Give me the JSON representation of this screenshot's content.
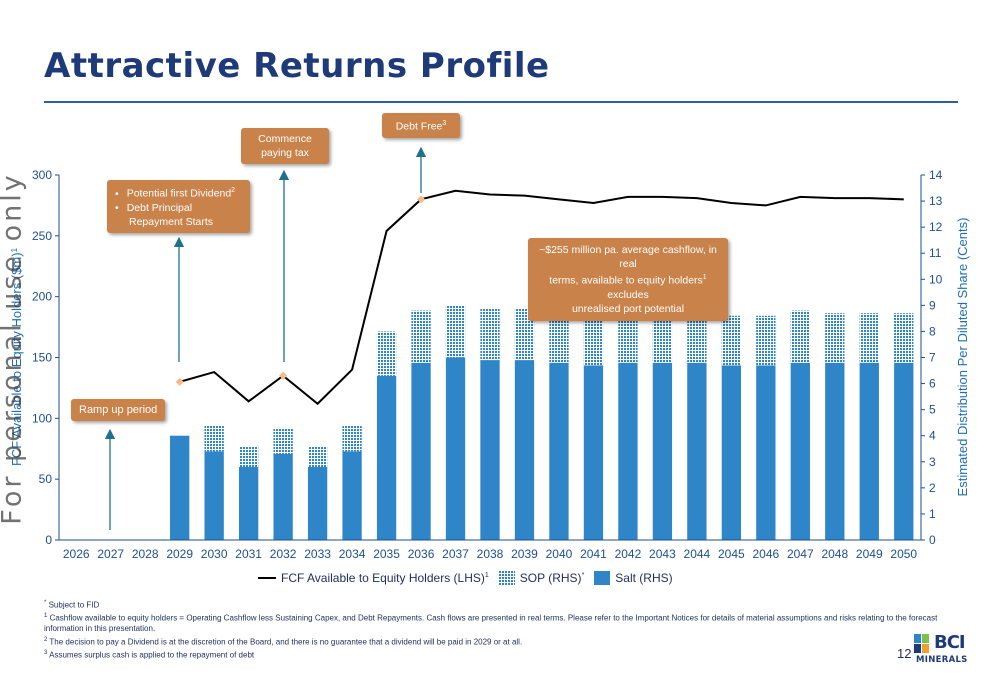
{
  "slide": {
    "title": "Attractive Returns Profile",
    "page_number": "12",
    "watermark": "For personal use only"
  },
  "colors": {
    "title": "#1e3a78",
    "salt": "#2e86c8",
    "sop": "#2e86c8",
    "line": "#000000",
    "marker": "#f5b98a",
    "callout": "#c8824a",
    "axis": "#1f4f8f"
  },
  "callouts": {
    "ramp_up": "Ramp up period",
    "dividend_items": [
      "Potential first Dividend",
      "Debt Principal Repayment Starts"
    ],
    "dividend_sup": "2",
    "tax_line1": "Commence",
    "tax_line2": "paying tax",
    "debt_free": "Debt Free",
    "debt_free_sup": "3",
    "cashflow_line1": "~$255 million pa. average cashflow, in real",
    "cashflow_line2a": "terms, available to equity holders",
    "cashflow_sup": "1",
    "cashflow_line2b": " excludes",
    "cashflow_line3": "unrealised port potential"
  },
  "legend": {
    "fcf": "FCF Available to Equity Holders (LHS)",
    "fcf_sup": "1",
    "sop": "SOP (RHS)",
    "sop_sup": "*",
    "salt": "Salt (RHS)"
  },
  "footnotes": {
    "star": "Subject to FID",
    "n1": "Cashflow available to equity holders = Operating Cashflow less Sustaining Capex, and Debt Repayments. Cash flows are presented in real terms. Please refer to the Important Notices for details of material assumptions and risks relating to the forecast information in this presentation.",
    "n2": "The decision to pay a Dividend is at the discretion of the Board, and there is no guarantee that a dividend will be paid in 2029 or at all.",
    "n3": "Assumes surplus cash is applied to the repayment of debt"
  },
  "logo": {
    "top": "BCI",
    "bottom": "MINERALS"
  },
  "chart_data": {
    "type": "bar+line",
    "categories": [
      "2026",
      "2027",
      "2028",
      "2029",
      "2030",
      "2031",
      "2032",
      "2033",
      "2034",
      "2035",
      "2036",
      "2037",
      "2038",
      "2039",
      "2040",
      "2041",
      "2042",
      "2043",
      "2044",
      "2045",
      "2046",
      "2047",
      "2048",
      "2049",
      "2050"
    ],
    "ylabel": "FCF Available to Equity Holders ($m)",
    "ylabel_sup": "1",
    "y2label": "Estimated Distribution Per Diluted Share (Cents)",
    "ylim": [
      0,
      300
    ],
    "yticks": [
      0,
      50,
      100,
      150,
      200,
      250,
      300
    ],
    "y2lim": [
      0,
      14
    ],
    "y2ticks": [
      0,
      1,
      2,
      3,
      4,
      5,
      6,
      7,
      8,
      9,
      10,
      11,
      12,
      13,
      14
    ],
    "bar_series": [
      {
        "name": "Salt (RHS)",
        "axis": "y2",
        "values": [
          0,
          0,
          0,
          4.0,
          3.4,
          2.8,
          3.3,
          2.8,
          3.4,
          6.3,
          6.8,
          7.0,
          6.9,
          6.9,
          6.8,
          6.7,
          6.8,
          6.8,
          6.8,
          6.7,
          6.7,
          6.8,
          6.8,
          6.8,
          6.8
        ]
      },
      {
        "name": "SOP (RHS)",
        "axis": "y2",
        "values": [
          0,
          0,
          0,
          0,
          1.0,
          0.8,
          1.0,
          0.8,
          1.0,
          1.7,
          2.0,
          2.0,
          2.0,
          2.0,
          2.0,
          1.9,
          2.0,
          2.0,
          2.0,
          1.9,
          1.9,
          2.0,
          1.9,
          1.9,
          1.9
        ]
      }
    ],
    "line_series": {
      "name": "FCF Available to Equity Holders (LHS)",
      "axis": "y",
      "start_index": 3,
      "values": [
        130,
        138,
        114,
        135,
        112,
        140,
        254,
        280,
        287,
        284,
        283,
        280,
        277,
        282,
        282,
        281,
        277,
        275,
        282,
        281,
        281,
        280
      ],
      "marker_indices": [
        3,
        6,
        10
      ]
    }
  }
}
